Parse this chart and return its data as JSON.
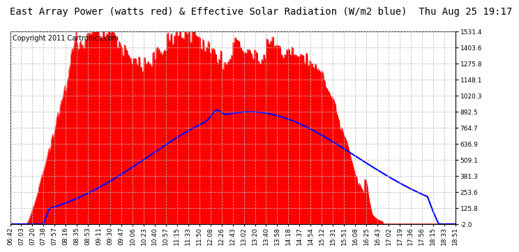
{
  "title": "East Array Power (watts red) & Effective Solar Radiation (W/m2 blue)  Thu Aug 25 19:17",
  "copyright": "Copyright 2011 Cartronics.com",
  "background_color": "#ffffff",
  "plot_bg_color": "#ffffff",
  "grid_color": "#aaaaaa",
  "ymin": -2.0,
  "ymax": 1531.4,
  "yticks": [
    -2.0,
    125.8,
    253.6,
    381.3,
    509.1,
    636.9,
    764.7,
    892.5,
    1020.3,
    1148.1,
    1275.8,
    1403.6,
    1531.4
  ],
  "xtick_labels": [
    "06:42",
    "07:03",
    "07:20",
    "07:38",
    "07:57",
    "08:16",
    "08:35",
    "08:53",
    "09:11",
    "09:30",
    "09:47",
    "10:06",
    "10:23",
    "10:40",
    "10:57",
    "11:15",
    "11:33",
    "11:50",
    "12:08",
    "12:26",
    "12:43",
    "13:02",
    "13:20",
    "13:40",
    "13:58",
    "14:18",
    "14:37",
    "14:54",
    "15:12",
    "15:31",
    "15:51",
    "16:08",
    "16:25",
    "16:43",
    "17:02",
    "17:19",
    "17:36",
    "17:56",
    "18:15",
    "18:33",
    "18:51"
  ],
  "red_color": "#ff0000",
  "blue_color": "#0000ff",
  "title_fontsize": 10,
  "copyright_fontsize": 7,
  "tick_fontsize": 6.5
}
